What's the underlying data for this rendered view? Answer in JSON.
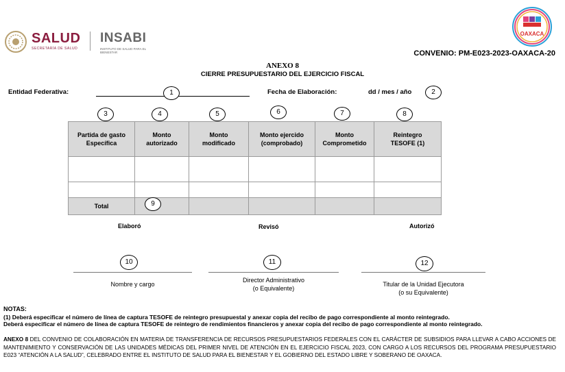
{
  "header": {
    "salud_logo_text": "SALUD",
    "salud_logo_sub": "SECRETARÍA DE SALUD",
    "insabi_logo_text": "INSABI",
    "insabi_logo_sub": "INSTITUTO DE SALUD PARA EL BIENESTAR",
    "oaxaca_logo_text": "OAXACA",
    "convenio": "CONVENIO: PM-E023-2023-OAXACA-20"
  },
  "title": {
    "anexo": "ANEXO 8",
    "subtitle": "CIERRE PRESUPUESTARIO DEL EJERCICIO FISCAL"
  },
  "fields": {
    "entidad_label": "Entidad Federativa:",
    "entidad_marker": "1",
    "fecha_label": "Fecha de Elaboración:",
    "fecha_value": "dd / mes / año",
    "fecha_marker": "2"
  },
  "table": {
    "markers": [
      "3",
      "4",
      "5",
      "6",
      "7",
      "8"
    ],
    "headers": [
      [
        "Partida de gasto",
        "Específica"
      ],
      [
        "Monto",
        "autorizado"
      ],
      [
        "Monto",
        "modificado"
      ],
      [
        "Monto ejercido",
        "(comprobado)"
      ],
      [
        "Monto",
        "Comprometido"
      ],
      [
        "Reintegro",
        "TESOFE (1)"
      ]
    ],
    "total_label": "Total",
    "total_marker": "9"
  },
  "signatures": {
    "elaboro": "Elaboró",
    "reviso": "Revisó",
    "autorizo": "Autorizó",
    "marker_10": "10",
    "marker_11": "11",
    "marker_12": "12",
    "cap_10": "Nombre y cargo",
    "cap_11_line1": "Director Administrativo",
    "cap_11_line2": "(o Equivalente)",
    "cap_12_line1": "Titular de la Unidad Ejecutora",
    "cap_12_line2": "(o su Equivalente)"
  },
  "notes": {
    "title": "NOTAS:",
    "note1": "(1)  Deberá especificar el número de línea de captura TESOFE de reintegro presupuestal y anexar copia del recibo de pago correspondiente al monto reintegrado.",
    "note2": "Deberá especificar el número de línea de captura TESOFE de reintegro de rendimientos financieros y anexar copia del recibo de pago correspondiente al monto reintegrado."
  },
  "footer": {
    "lead": "ANEXO 8",
    "text": " DEL CONVENIO DE COLABORACIÓN EN MATERIA DE TRANSFERENCIA DE RECURSOS PRESUPUESTARIOS FEDERALES CON EL CARÁCTER DE SUBSIDIOS PARA LLEVAR A CABO ACCIONES DE MANTENIMIENTO Y CONSERVACIÓN DE LAS UNIDADES MÉDICAS DEL PRIMER NIVEL DE ATENCIÓN EN EL EJERCICIO FISCAL 2023, CON CARGO A LOS RECURSOS DEL PROGRAMA PRESUPUESTARIO E023 “ATENCIÓN A LA SALUD”, CELEBRADO ENTRE EL INSTITUTO DE SALUD PARA EL BIENESTAR Y EL GOBIERNO DEL ESTADO LIBRE Y SOBERANO DE OAXACA."
  }
}
